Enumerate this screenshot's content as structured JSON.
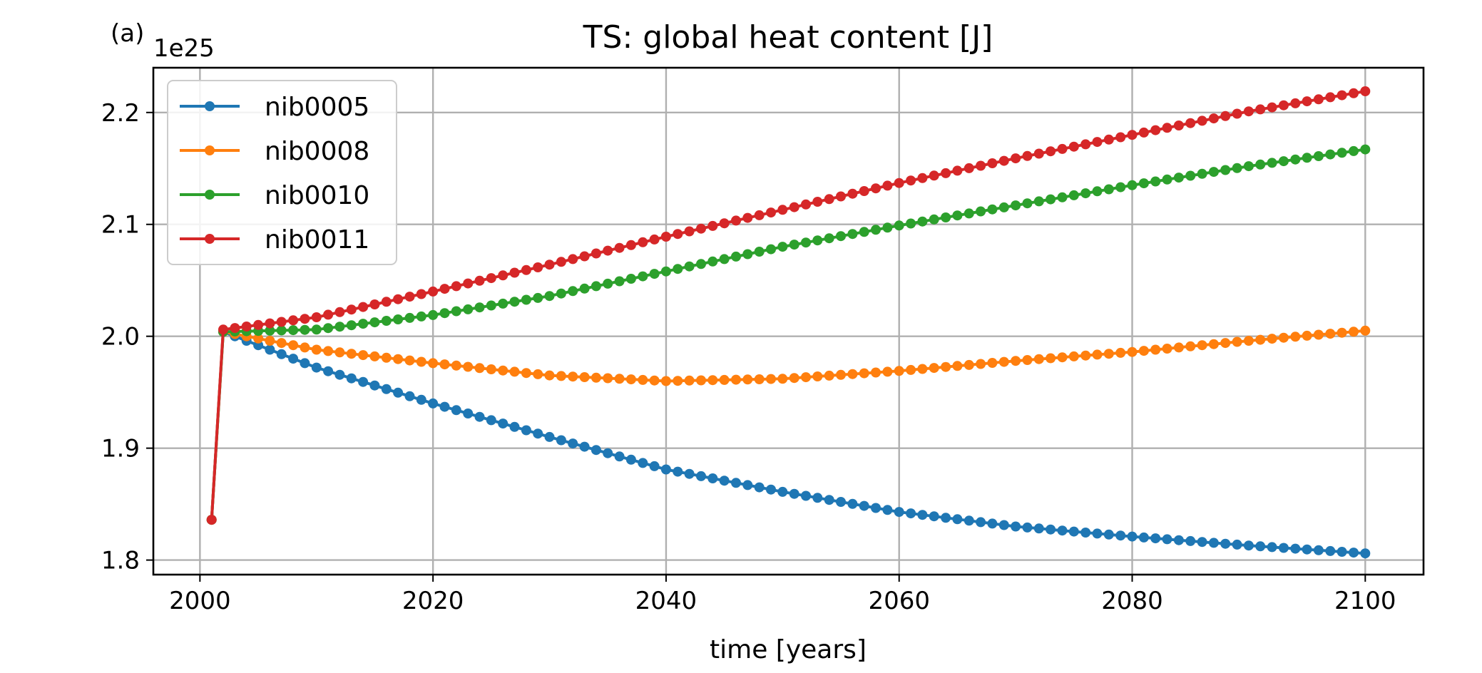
{
  "chart_data": {
    "type": "line",
    "title": "TS: global heat content [J]",
    "panel_label": "(a)",
    "xlabel": "time [years]",
    "ylabel": "",
    "y_offset_label": "1e25",
    "xlim": [
      1996,
      2105
    ],
    "ylim": [
      1.787,
      2.24
    ],
    "xticks": [
      2000,
      2020,
      2040,
      2060,
      2080,
      2100
    ],
    "yticks": [
      1.8,
      1.9,
      2.0,
      2.1,
      2.2
    ],
    "ytick_labels": [
      "1.8",
      "1.9",
      "2.0",
      "2.1",
      "2.2"
    ],
    "grid": true,
    "legend_placement": "top-left",
    "first_point": {
      "x": 2001,
      "y": 1.836
    },
    "x_start": 2002,
    "x_end": 2100,
    "series": [
      {
        "name": "nib0005",
        "color": "#1f77b4",
        "start": 2.004,
        "anchors": [
          [
            2002,
            2.004
          ],
          [
            2010,
            1.972
          ],
          [
            2020,
            1.94
          ],
          [
            2030,
            1.91
          ],
          [
            2040,
            1.881
          ],
          [
            2050,
            1.861
          ],
          [
            2060,
            1.843
          ],
          [
            2070,
            1.83
          ],
          [
            2080,
            1.821
          ],
          [
            2090,
            1.813
          ],
          [
            2100,
            1.806
          ]
        ]
      },
      {
        "name": "nib0008",
        "color": "#ff7f0e",
        "start": 2.004,
        "anchors": [
          [
            2002,
            2.004
          ],
          [
            2010,
            1.988
          ],
          [
            2020,
            1.976
          ],
          [
            2030,
            1.965
          ],
          [
            2040,
            1.96
          ],
          [
            2050,
            1.962
          ],
          [
            2060,
            1.969
          ],
          [
            2070,
            1.978
          ],
          [
            2080,
            1.986
          ],
          [
            2090,
            1.996
          ],
          [
            2100,
            2.005
          ]
        ]
      },
      {
        "name": "nib0010",
        "color": "#2ca02c",
        "start": 2.004,
        "anchors": [
          [
            2002,
            2.004
          ],
          [
            2010,
            2.006
          ],
          [
            2020,
            2.019
          ],
          [
            2030,
            2.036
          ],
          [
            2040,
            2.058
          ],
          [
            2050,
            2.08
          ],
          [
            2060,
            2.099
          ],
          [
            2070,
            2.117
          ],
          [
            2080,
            2.135
          ],
          [
            2090,
            2.152
          ],
          [
            2100,
            2.167
          ]
        ]
      },
      {
        "name": "nib0011",
        "color": "#d62728",
        "start": 2.006,
        "anchors": [
          [
            2002,
            2.006
          ],
          [
            2010,
            2.017
          ],
          [
            2020,
            2.04
          ],
          [
            2030,
            2.064
          ],
          [
            2040,
            2.089
          ],
          [
            2050,
            2.113
          ],
          [
            2060,
            2.137
          ],
          [
            2070,
            2.159
          ],
          [
            2080,
            2.18
          ],
          [
            2090,
            2.201
          ],
          [
            2100,
            2.219
          ]
        ]
      }
    ]
  }
}
